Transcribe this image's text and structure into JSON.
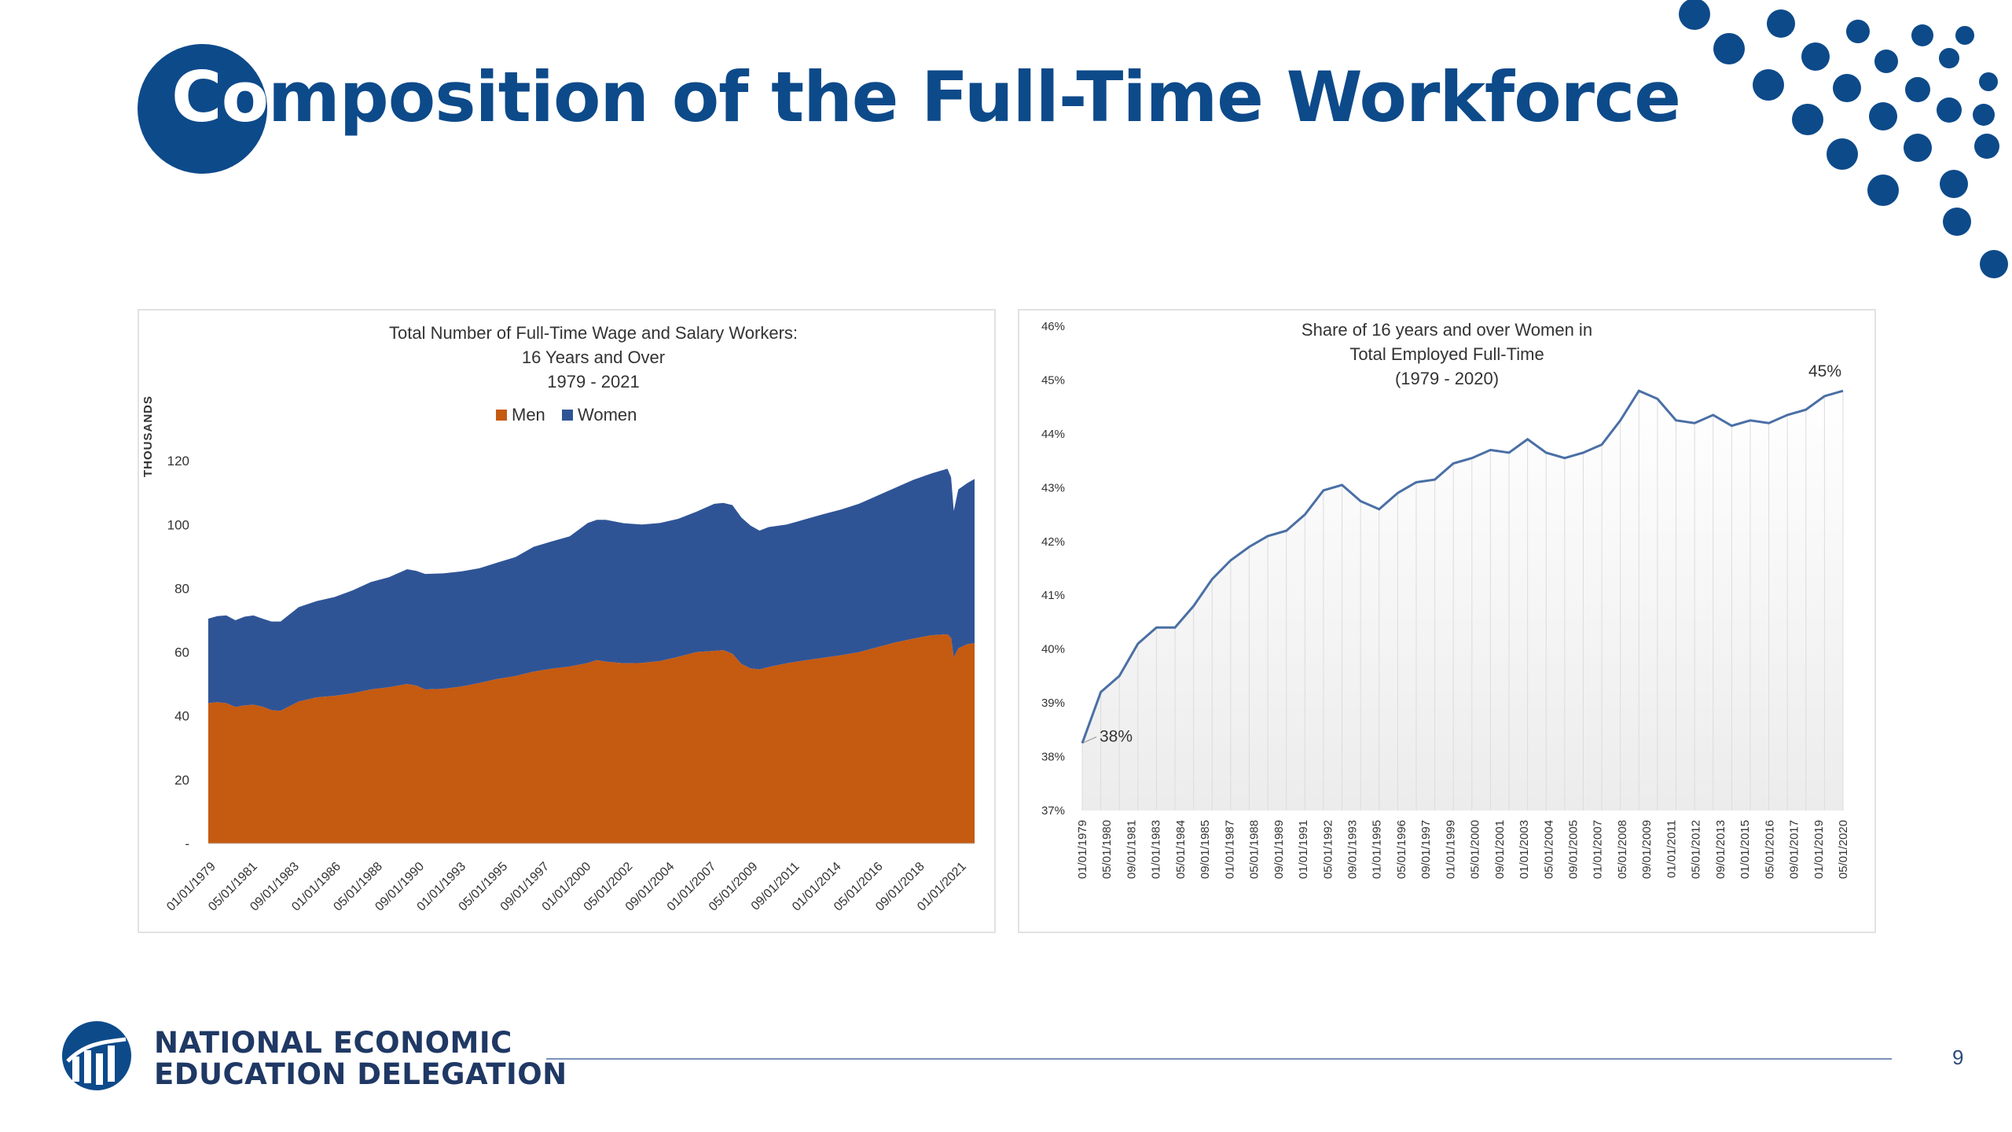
{
  "slide": {
    "title_lead": "Co",
    "title_rest": "mposition of the Full-Time Workforce",
    "page_number": "9"
  },
  "footer": {
    "org_line1": "NATIONAL ECONOMIC",
    "org_line2": "EDUCATION DELEGATION"
  },
  "colors": {
    "brand_blue": "#0d4a8a",
    "men": "#c55a11",
    "women": "#2f5496",
    "line": "#4a6fa5"
  },
  "chart_data": [
    {
      "type": "area",
      "stacked": true,
      "title_lines": [
        "Total Number of Full-Time Wage and Salary Workers:",
        "16 Years and Over",
        "1979 - 2021"
      ],
      "ylabel": "THOUSANDS",
      "ylim": [
        0,
        140
      ],
      "yticks": [
        {
          "value": 0,
          "label": "-"
        },
        {
          "value": 20,
          "label": "20"
        },
        {
          "value": 40,
          "label": "40"
        },
        {
          "value": 60,
          "label": "60"
        },
        {
          "value": 80,
          "label": "80"
        },
        {
          "value": 100,
          "label": "100"
        },
        {
          "value": 120,
          "label": "120"
        }
      ],
      "legend_position": "top-center",
      "x_tick_labels": [
        "01/01/1979",
        "05/01/1981",
        "09/01/1983",
        "01/01/1986",
        "05/01/1988",
        "09/01/1990",
        "01/01/1993",
        "05/01/1995",
        "09/01/1997",
        "01/01/2000",
        "05/01/2002",
        "09/01/2004",
        "01/01/2007",
        "05/01/2009",
        "09/01/2011",
        "01/01/2014",
        "05/01/2016",
        "09/01/2018",
        "01/01/2021"
      ],
      "x": [
        1979.0,
        1979.5,
        1980.0,
        1980.5,
        1981.0,
        1981.5,
        1982.0,
        1982.5,
        1983.0,
        1984.0,
        1985.0,
        1986.0,
        1987.0,
        1988.0,
        1989.0,
        1990.0,
        1990.5,
        1991.0,
        1992.0,
        1993.0,
        1994.0,
        1995.0,
        1996.0,
        1997.0,
        1998.0,
        1999.0,
        2000.0,
        2000.5,
        2001.0,
        2002.0,
        2003.0,
        2004.0,
        2005.0,
        2006.0,
        2007.0,
        2007.5,
        2008.0,
        2008.5,
        2009.0,
        2009.5,
        2010.0,
        2011.0,
        2012.0,
        2013.0,
        2014.0,
        2015.0,
        2016.0,
        2017.0,
        2018.0,
        2019.0,
        2019.9,
        2020.1,
        2020.25,
        2020.5,
        2021.0,
        2021.4
      ],
      "series": [
        {
          "name": "Men",
          "values": [
            44.0,
            44.3,
            44.0,
            42.8,
            43.3,
            43.5,
            42.9,
            41.8,
            41.6,
            44.5,
            45.8,
            46.3,
            47.1,
            48.3,
            49.0,
            50.0,
            49.5,
            48.3,
            48.5,
            49.2,
            50.3,
            51.6,
            52.5,
            53.9,
            54.8,
            55.5,
            56.6,
            57.5,
            57.0,
            56.5,
            56.6,
            57.2,
            58.5,
            60.0,
            60.4,
            60.6,
            59.5,
            56.3,
            54.9,
            54.6,
            55.3,
            56.5,
            57.4,
            58.2,
            59.0,
            60.0,
            61.5,
            63.0,
            64.2,
            65.3,
            65.6,
            64.5,
            58.3,
            61.2,
            62.5,
            62.8
          ]
        },
        {
          "name": "Women",
          "values": [
            26.5,
            27.0,
            27.5,
            27.2,
            27.8,
            28.0,
            27.6,
            27.8,
            28.0,
            29.6,
            30.2,
            31.0,
            32.3,
            33.7,
            34.5,
            36.0,
            36.0,
            36.2,
            36.2,
            36.1,
            36.0,
            36.5,
            37.3,
            39.1,
            39.9,
            40.8,
            43.9,
            44.0,
            44.5,
            43.9,
            43.4,
            43.3,
            43.3,
            44.0,
            46.1,
            46.2,
            46.6,
            45.9,
            44.8,
            43.5,
            43.9,
            43.5,
            44.2,
            45.0,
            45.7,
            46.5,
            47.5,
            48.5,
            49.8,
            50.7,
            51.9,
            50.3,
            46.0,
            49.8,
            50.5,
            51.5
          ]
        }
      ]
    },
    {
      "type": "line",
      "title_lines": [
        "Share of 16 years and over Women in",
        "Total Employed Full-Time",
        "(1979 - 2020)"
      ],
      "ylim": [
        37,
        46
      ],
      "ytick_labels": [
        "37%",
        "38%",
        "39%",
        "40%",
        "41%",
        "42%",
        "43%",
        "44%",
        "45%",
        "46%"
      ],
      "grid": "vertical",
      "x_labels": [
        "01/01/1979",
        "05/01/1980",
        "09/01/1981",
        "01/01/1983",
        "05/01/1984",
        "09/01/1985",
        "01/01/1987",
        "05/01/1988",
        "09/01/1989",
        "01/01/1991",
        "05/01/1992",
        "09/01/1993",
        "01/01/1995",
        "05/01/1996",
        "09/01/1997",
        "01/01/1999",
        "05/01/2000",
        "09/01/2001",
        "01/01/2003",
        "05/01/2004",
        "09/01/2005",
        "01/01/2007",
        "05/01/2008",
        "09/01/2009",
        "01/01/2011",
        "05/01/2012",
        "09/01/2013",
        "01/01/2015",
        "05/01/2016",
        "09/01/2017",
        "01/01/2019",
        "05/01/2020"
      ],
      "values": [
        38.25,
        39.2,
        39.5,
        40.1,
        40.4,
        40.4,
        40.8,
        41.3,
        41.65,
        41.9,
        42.1,
        42.2,
        42.5,
        42.95,
        43.05,
        42.75,
        42.6,
        42.9,
        43.1,
        43.15,
        43.45,
        43.55,
        43.7,
        43.65,
        43.9,
        43.65,
        43.55,
        43.65,
        43.8,
        44.25,
        44.8,
        44.65,
        44.25,
        44.2,
        44.35,
        44.15,
        44.25,
        44.2,
        44.35,
        44.45,
        44.7,
        44.8
      ],
      "annotations": [
        {
          "label": "38%",
          "index": 0
        },
        {
          "label": "45%",
          "index": 41
        }
      ]
    }
  ]
}
